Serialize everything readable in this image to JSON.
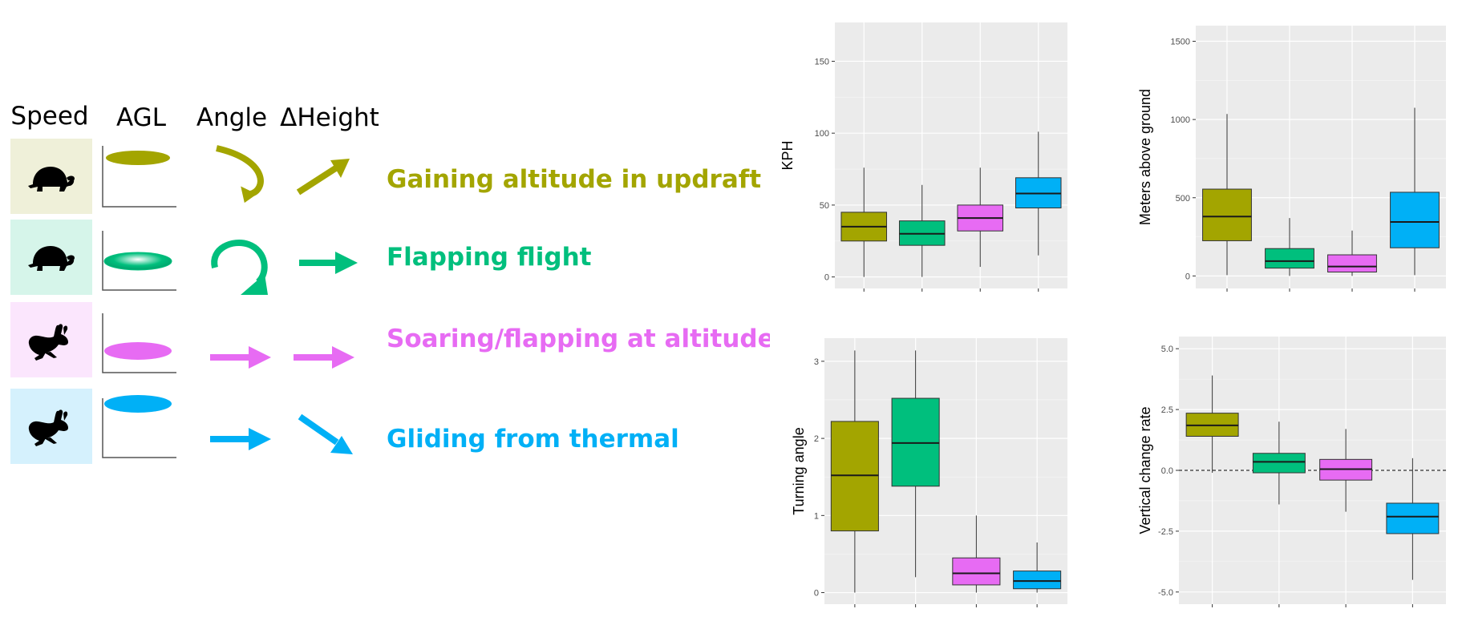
{
  "legend": {
    "headers": [
      "Speed",
      "AGL",
      "Angle",
      "ΔHeight"
    ],
    "rows": [
      {
        "label": "Gaining altitude in updraft",
        "color": "#a3a500",
        "bg": "#eff0d9",
        "animal": "turtle",
        "angle": "curved-arrow-down",
        "height": "arrow-up-right"
      },
      {
        "label": "Flapping flight",
        "color": "#00bf7d",
        "bg": "#d6f5ea",
        "animal": "turtle",
        "angle": "circular-arrow",
        "height": "arrow-right"
      },
      {
        "label": "Soaring/flapping at altitude",
        "color": "#e76bf3",
        "bg": "#fbe6fd",
        "animal": "rabbit",
        "angle": "arrow-right",
        "height": "arrow-right"
      },
      {
        "label": "Gliding from thermal",
        "color": "#00b0f6",
        "bg": "#d5f1fd",
        "animal": "rabbit",
        "angle": "arrow-right",
        "height": "arrow-down-right"
      }
    ]
  },
  "chart_data": [
    {
      "type": "boxplot",
      "ylabel": "KPH",
      "ylim": [
        -8,
        177
      ],
      "yticks": [
        0,
        50,
        100,
        150
      ],
      "ytick_labels": [
        "0",
        "50",
        "100",
        "150"
      ],
      "grid": true,
      "colors": [
        "#a3a500",
        "#00bf7d",
        "#e76bf3",
        "#00b0f6"
      ],
      "boxes": [
        {
          "min": 0,
          "q1": 25,
          "median": 35,
          "q3": 45,
          "max": 76
        },
        {
          "min": 0,
          "q1": 22,
          "median": 30,
          "q3": 39,
          "max": 64
        },
        {
          "min": 7,
          "q1": 32,
          "median": 41,
          "q3": 50,
          "max": 76
        },
        {
          "min": 15,
          "q1": 48,
          "median": 58,
          "q3": 69,
          "max": 101
        }
      ]
    },
    {
      "type": "boxplot",
      "ylabel": "Meters above ground",
      "ylim": [
        -80,
        1600
      ],
      "yticks": [
        0,
        500,
        1000,
        1500
      ],
      "ytick_labels": [
        "0",
        "500",
        "1000",
        "1500"
      ],
      "grid": true,
      "colors": [
        "#a3a500",
        "#00bf7d",
        "#e76bf3",
        "#00b0f6"
      ],
      "boxes": [
        {
          "min": 5,
          "q1": 225,
          "median": 380,
          "q3": 555,
          "max": 1035
        },
        {
          "min": 0,
          "q1": 50,
          "median": 95,
          "q3": 175,
          "max": 370
        },
        {
          "min": 0,
          "q1": 25,
          "median": 60,
          "q3": 135,
          "max": 290
        },
        {
          "min": 5,
          "q1": 180,
          "median": 345,
          "q3": 535,
          "max": 1075
        }
      ]
    },
    {
      "type": "boxplot",
      "ylabel": "Turning angle",
      "ylim": [
        -0.15,
        3.3
      ],
      "yticks": [
        0,
        1,
        2,
        3
      ],
      "ytick_labels": [
        "0",
        "1",
        "2",
        "3"
      ],
      "grid": true,
      "colors": [
        "#a3a500",
        "#00bf7d",
        "#e76bf3",
        "#00b0f6"
      ],
      "boxes": [
        {
          "min": 0,
          "q1": 0.8,
          "median": 1.52,
          "q3": 2.22,
          "max": 3.14
        },
        {
          "min": 0.2,
          "q1": 1.38,
          "median": 1.94,
          "q3": 2.52,
          "max": 3.14
        },
        {
          "min": 0,
          "q1": 0.1,
          "median": 0.25,
          "q3": 0.45,
          "max": 1.0
        },
        {
          "min": 0,
          "q1": 0.05,
          "median": 0.15,
          "q3": 0.28,
          "max": 0.65
        }
      ]
    },
    {
      "type": "boxplot",
      "ylabel": "Vertical change rate",
      "ylim": [
        -5.5,
        5.5
      ],
      "yticks": [
        -5,
        -2.5,
        0,
        2.5,
        5
      ],
      "ytick_labels": [
        "-5.0",
        "-2.5",
        "0.0",
        "2.5",
        "5.0"
      ],
      "grid": true,
      "reference_line": 0,
      "colors": [
        "#a3a500",
        "#00bf7d",
        "#e76bf3",
        "#00b0f6"
      ],
      "boxes": [
        {
          "min": -0.1,
          "q1": 1.4,
          "median": 1.85,
          "q3": 2.35,
          "max": 3.9
        },
        {
          "min": -1.4,
          "q1": -0.1,
          "median": 0.35,
          "q3": 0.7,
          "max": 2.0
        },
        {
          "min": -1.7,
          "q1": -0.4,
          "median": 0.05,
          "q3": 0.45,
          "max": 1.7
        },
        {
          "min": -4.5,
          "q1": -2.6,
          "median": -1.9,
          "q3": -1.35,
          "max": 0.5
        }
      ]
    }
  ]
}
